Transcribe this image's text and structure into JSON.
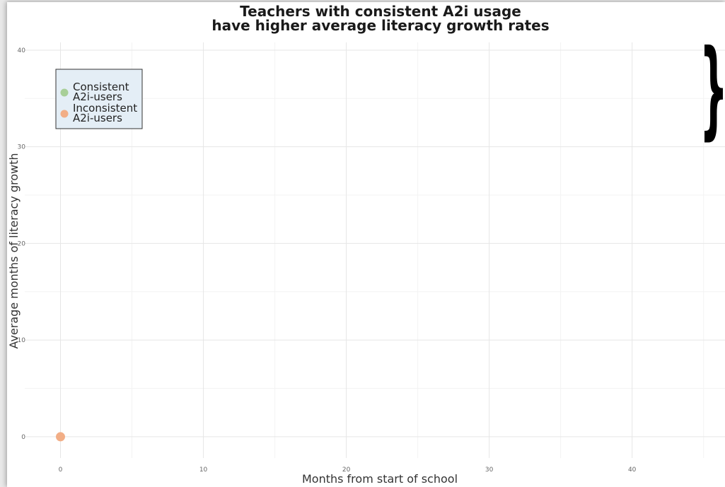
{
  "chart_data": {
    "type": "scatter",
    "title_lines": [
      "Teachers with consistent A2i usage",
      "have higher average literacy growth rates"
    ],
    "xlabel": "Months from start of school",
    "ylabel": "Average months of literacy growth",
    "xlim": [
      -2.5,
      46.5
    ],
    "ylim": [
      -2.2,
      40.8
    ],
    "x_major_ticks": [
      0,
      10,
      20,
      30,
      40
    ],
    "x_minor_ticks": [
      5,
      15,
      25,
      35,
      45
    ],
    "y_major_ticks": [
      0,
      10,
      20,
      30,
      40
    ],
    "y_minor_ticks": [
      5,
      15,
      25,
      35
    ],
    "x_tick_labels": [
      "0",
      "10",
      "20",
      "30",
      "40"
    ],
    "y_tick_labels": [
      "0",
      "10",
      "20",
      "30",
      "40"
    ],
    "grid": true,
    "legend_position": "top-left",
    "series": [
      {
        "name": "Consistent A2i-users",
        "label_lines": [
          "Consistent",
          "A2i-users"
        ],
        "color": "#a8cf98",
        "points": []
      },
      {
        "name": "Inconsistent A2i-users",
        "label_lines": [
          "Inconsistent",
          "A2i-users"
        ],
        "color": "#f2ae86",
        "points": [
          {
            "x": 0,
            "y": 0
          }
        ]
      }
    ],
    "legend_background": "#e4eef6",
    "annotations": [
      {
        "type": "bracket",
        "glyph": "}",
        "position": "top-right"
      }
    ]
  }
}
